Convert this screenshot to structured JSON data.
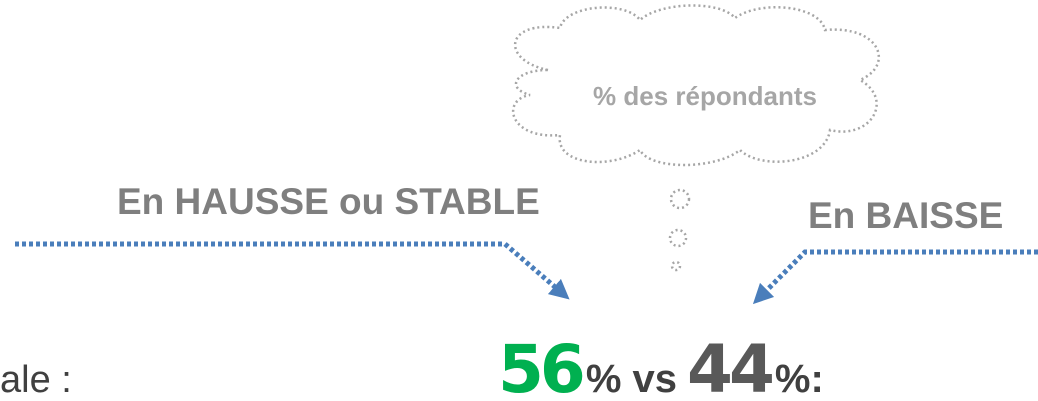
{
  "cloud": {
    "label": "% des répondants"
  },
  "labels": {
    "left": "En HAUSSE ou STABLE",
    "right": "En BAISSE"
  },
  "caption": "ale :",
  "comparison": {
    "first": 56,
    "middle": "% vs",
    "second": 44,
    "end": "%:"
  }
}
